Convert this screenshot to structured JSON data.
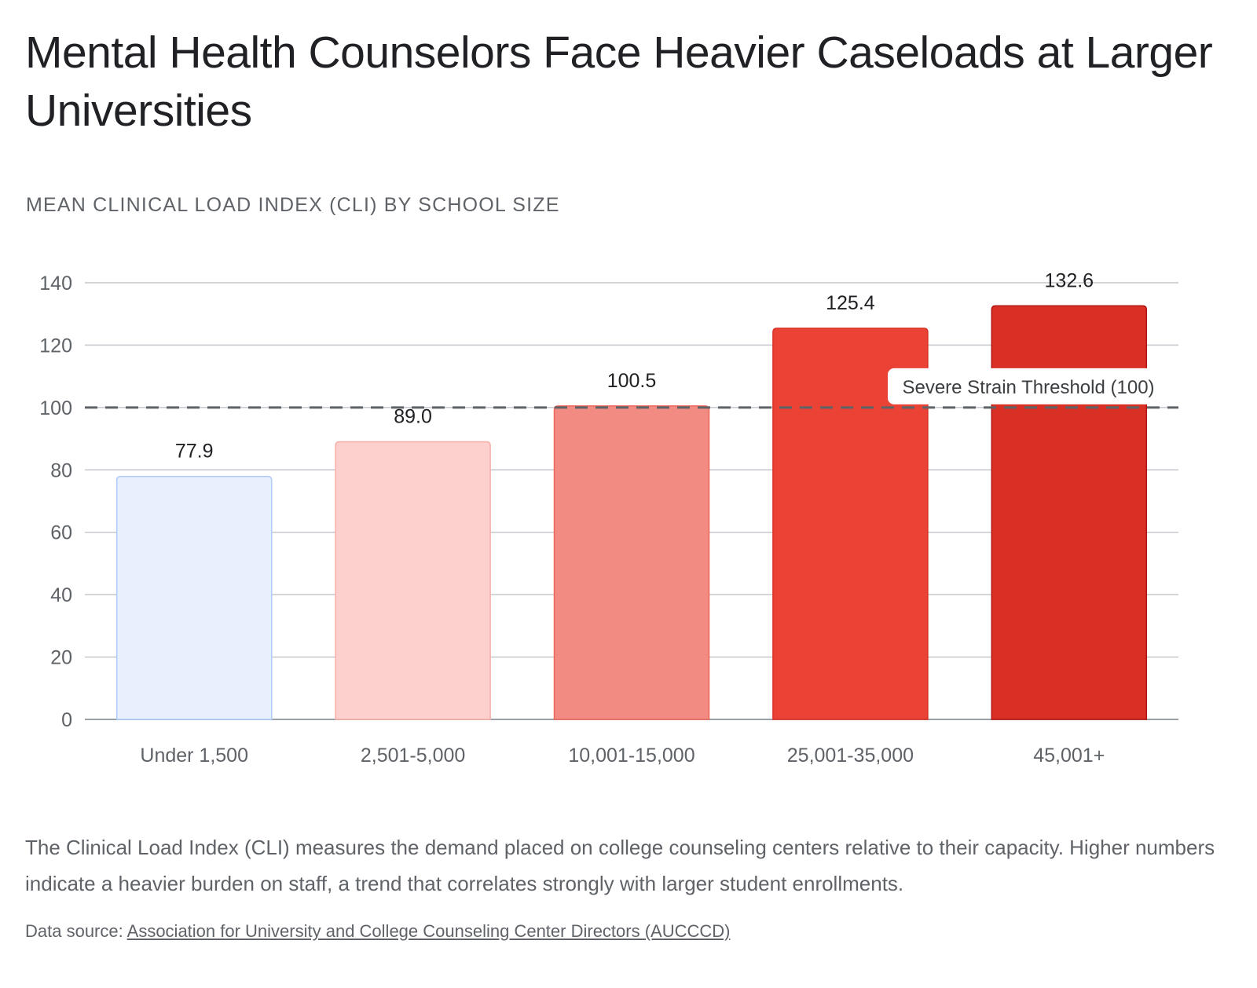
{
  "chart_data": {
    "type": "bar",
    "title": "Mental Health Counselors Face Heavier Caseloads at Larger Universities",
    "subtitle": "MEAN CLINICAL LOAD INDEX (CLI) BY SCHOOL SIZE",
    "categories": [
      "Under 1,500",
      "2,501-5,000",
      "10,001-15,000",
      "25,001-35,000",
      "45,001+"
    ],
    "values": [
      77.9,
      89.0,
      100.5,
      125.4,
      132.6
    ],
    "value_labels": [
      "77.9",
      "89.0",
      "100.5",
      "125.4",
      "132.6"
    ],
    "bar_colors": [
      "#e8f0fe",
      "#fdcfcd",
      "#f28b82",
      "#ea4335",
      "#d93025"
    ],
    "bar_stroke_colors": [
      "#aecbfa",
      "#f6aea9",
      "#ee675c",
      "#d93025",
      "#b31412"
    ],
    "ylim": [
      0,
      140
    ],
    "yticks": [
      0,
      20,
      40,
      60,
      80,
      100,
      120,
      140
    ],
    "grid": true,
    "xlabel": "",
    "ylabel": "",
    "threshold": {
      "value": 100,
      "label": "Severe Strain Threshold (100)"
    }
  },
  "description": "The Clinical Load Index (CLI) measures the demand placed on college counseling centers relative to their capacity. Higher numbers indicate a heavier burden on staff, a trend that correlates strongly with larger student enrollments.",
  "source": {
    "prefix": "Data source: ",
    "link_text": "Association for University and College Counseling Center Directors (AUCCCD)"
  },
  "colors": {
    "title": "#202124",
    "muted": "#5f6368",
    "grid": "#c4c7cc",
    "axis": "#9aa0a6",
    "threshold": "#5f6368"
  }
}
